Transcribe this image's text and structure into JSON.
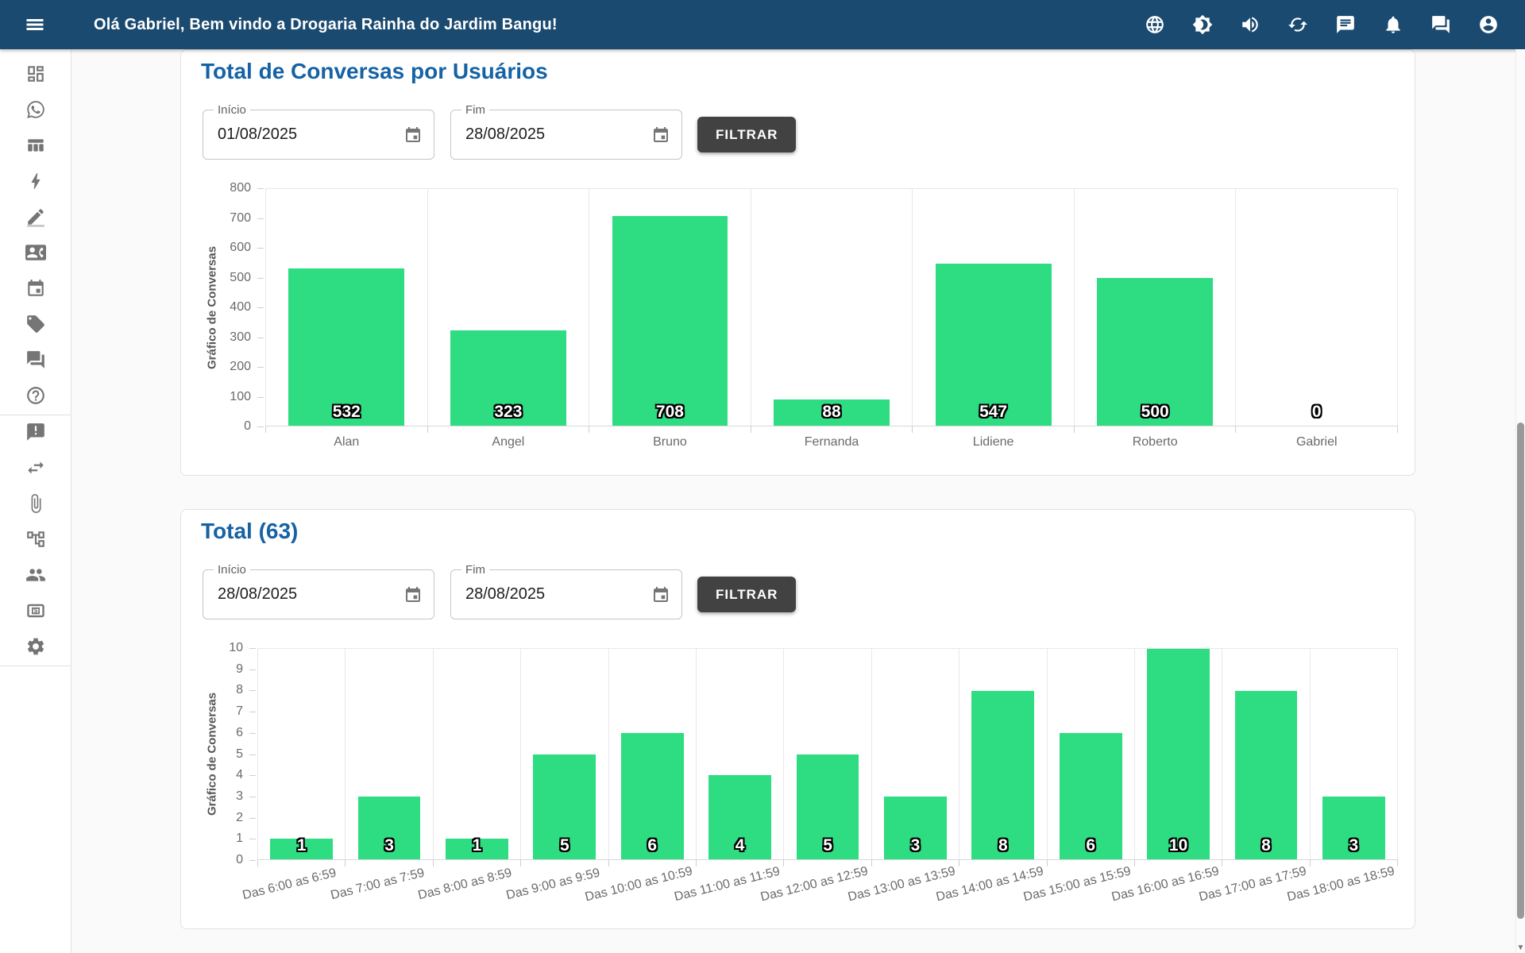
{
  "topbar": {
    "greeting": "Olá Gabriel, Bem vindo a Drogaria Rainha do Jardim Bangu!",
    "icon_names": [
      "menu-icon",
      "globe-icon",
      "brightness-icon",
      "volume-icon",
      "sync-icon",
      "chat-icon",
      "bell-icon",
      "forum-icon",
      "account-icon"
    ]
  },
  "sidebar": {
    "icon_names": [
      "dashboard-icon",
      "whatsapp-icon",
      "columns-icon",
      "bolt-icon",
      "edit-icon",
      "contact-card-icon",
      "calendar-icon",
      "tag-icon",
      "forum-icon",
      "help-icon",
      "announcement-icon",
      "swap-icon",
      "attachment-icon",
      "schema-icon",
      "people-icon",
      "money-icon",
      "settings-icon"
    ]
  },
  "cards": [
    {
      "title": "Total de Conversas por Usuários",
      "filters": {
        "start_label": "Início",
        "start_value": "01/08/2025",
        "end_label": "Fim",
        "end_value": "28/08/2025",
        "button_label": "FILTRAR"
      }
    },
    {
      "title": "Total (63)",
      "filters": {
        "start_label": "Início",
        "start_value": "28/08/2025",
        "end_label": "Fim",
        "end_value": "28/08/2025",
        "button_label": "FILTRAR"
      }
    }
  ],
  "colors": {
    "topbar_bg": "#1b4a70",
    "bar_green": "#2edd82",
    "title_blue": "#1562a5",
    "button_dark": "#424242"
  },
  "chart_data": [
    {
      "type": "bar",
      "title": "Total de Conversas por Usuários",
      "categories": [
        "Alan",
        "Angel",
        "Bruno",
        "Fernanda",
        "Lidiene",
        "Roberto",
        "Gabriel"
      ],
      "values": [
        532,
        323,
        708,
        88,
        547,
        500,
        0
      ],
      "xlabel": "",
      "ylabel": "Gráfico de Conversas",
      "ylim": [
        0,
        800
      ],
      "ytick_step": 100,
      "bar_color": "#2edd82",
      "value_labels_shown": true,
      "grid": "vertical-category-lines",
      "legend": false
    },
    {
      "type": "bar",
      "title": "Total (63)",
      "categories": [
        "Das 6:00 as 6:59",
        "Das 7:00 as 7:59",
        "Das 8:00 as 8:59",
        "Das 9:00 as 9:59",
        "Das 10:00 as 10:59",
        "Das 11:00 as 11:59",
        "Das 12:00 as 12:59",
        "Das 13:00 as 13:59",
        "Das 14:00 as 14:59",
        "Das 15:00 as 15:59",
        "Das 16:00 as 16:59",
        "Das 17:00 as 17:59",
        "Das 18:00 as 18:59"
      ],
      "values": [
        1,
        3,
        1,
        5,
        6,
        4,
        5,
        3,
        8,
        6,
        10,
        8,
        3
      ],
      "xlabel": "",
      "ylabel": "Gráfico de Conversas",
      "ylim": [
        0,
        10
      ],
      "ytick_step": 1,
      "bar_color": "#2edd82",
      "value_labels_shown": true,
      "x_label_rotation": -14,
      "grid": "vertical-category-lines",
      "legend": false
    }
  ]
}
